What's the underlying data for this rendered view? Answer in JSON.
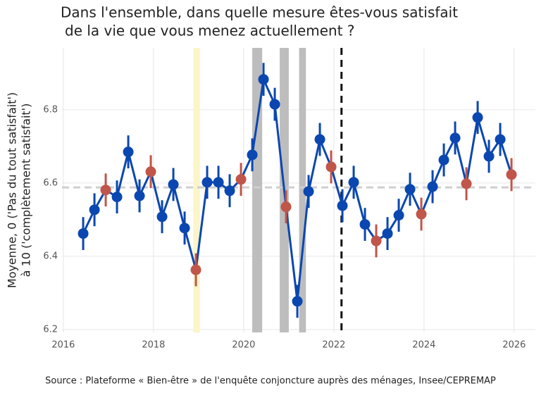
{
  "chart_data": {
    "type": "line",
    "title": [
      "Dans l'ensemble, dans quelle mesure êtes-vous satisfait",
      "de la vie que vous menez actuellement ?"
    ],
    "y_label": [
      "Moyenne, 0 ('Pas du tout satisfait')",
      "à 10 ('complètement satisfait')"
    ],
    "source": "Source : Plateforme « Bien-être » de l'enquête conjoncture auprès des ménages, Insee/CEPREMAP",
    "xlim": [
      2015.97,
      2026.47
    ],
    "ylim": [
      6.192,
      6.969
    ],
    "xticks": [
      2016,
      2018,
      2020,
      2022,
      2024,
      2026
    ],
    "yticks": [
      6.2,
      6.4,
      6.6,
      6.8
    ],
    "grid": true,
    "mean_line": 6.588,
    "vline": 2022.17,
    "bands": [
      {
        "range": [
          2018.88,
          2019.03
        ],
        "color": "#fbf5c8"
      },
      {
        "range": [
          2020.19,
          2020.41
        ],
        "color": "#bdbdbd"
      },
      {
        "range": [
          2020.8,
          2021.0
        ],
        "color": "#bdbdbd"
      },
      {
        "range": [
          2021.23,
          2021.38
        ],
        "color": "#bdbdbd"
      }
    ],
    "series": [
      {
        "color": "#0b47b0",
        "x": [
          2016.44,
          2016.69,
          2016.94,
          2017.19,
          2017.44,
          2017.69,
          2017.94,
          2018.19,
          2018.44,
          2018.69,
          2018.94,
          2019.19,
          2019.44,
          2019.69,
          2019.94,
          2020.19,
          2020.44,
          2020.69,
          2020.94,
          2021.19,
          2021.44,
          2021.69,
          2021.94,
          2022.19,
          2022.44,
          2022.69,
          2022.94,
          2023.19,
          2023.44,
          2023.69,
          2023.94,
          2024.19,
          2024.44,
          2024.69,
          2024.94,
          2025.19,
          2025.44,
          2025.69,
          2025.94
        ],
        "values": [
          6.462,
          6.527,
          6.581,
          6.562,
          6.685,
          6.565,
          6.631,
          6.508,
          6.596,
          6.477,
          6.363,
          6.602,
          6.602,
          6.579,
          6.61,
          6.677,
          6.883,
          6.815,
          6.535,
          6.277,
          6.577,
          6.719,
          6.644,
          6.538,
          6.602,
          6.487,
          6.442,
          6.462,
          6.512,
          6.583,
          6.515,
          6.59,
          6.663,
          6.723,
          6.598,
          6.779,
          6.673,
          6.719,
          6.623
        ],
        "errors": [
          0.045,
          0.045,
          0.045,
          0.045,
          0.045,
          0.045,
          0.045,
          0.045,
          0.045,
          0.045,
          0.045,
          0.045,
          0.045,
          0.045,
          0.045,
          0.045,
          0.045,
          0.045,
          0.045,
          0.045,
          0.045,
          0.045,
          0.045,
          0.045,
          0.045,
          0.045,
          0.045,
          0.045,
          0.045,
          0.045,
          0.045,
          0.045,
          0.045,
          0.045,
          0.045,
          0.045,
          0.045,
          0.045,
          0.045
        ],
        "point_colors": [
          "#0b47b0",
          "#0b47b0",
          "#c0554a",
          "#0b47b0",
          "#0b47b0",
          "#0b47b0",
          "#c0554a",
          "#0b47b0",
          "#0b47b0",
          "#0b47b0",
          "#c0554a",
          "#0b47b0",
          "#0b47b0",
          "#0b47b0",
          "#c0554a",
          "#0b47b0",
          "#0b47b0",
          "#0b47b0",
          "#c0554a",
          "#0b47b0",
          "#0b47b0",
          "#0b47b0",
          "#c0554a",
          "#0b47b0",
          "#0b47b0",
          "#0b47b0",
          "#c0554a",
          "#0b47b0",
          "#0b47b0",
          "#0b47b0",
          "#c0554a",
          "#0b47b0",
          "#0b47b0",
          "#0b47b0",
          "#c0554a",
          "#0b47b0",
          "#0b47b0",
          "#0b47b0",
          "#c0554a"
        ]
      }
    ]
  }
}
